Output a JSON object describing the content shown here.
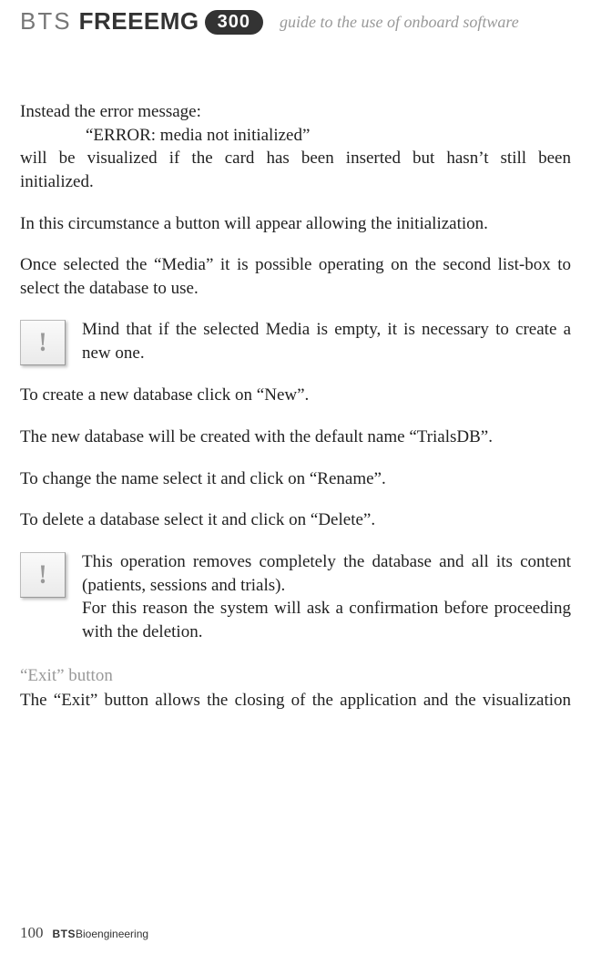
{
  "header": {
    "logo_bts": "BTS",
    "logo_freeemg": "FREEEMG",
    "logo_300": "300",
    "guide": "guide to the use of onboard software"
  },
  "content": {
    "p1_line1": "Instead the error message:",
    "p1_error": "“ERROR: media not initialized”",
    "p1_line2a": "will be visualized if the card has been inserted but hasn’t still been",
    "p1_line2b": "initialized.",
    "p2": "In this circumstance a button will appear allowing the initialization.",
    "p3": "Once selected the “Media” it is possible operating on the second list-box to select the database to use.",
    "note1": "Mind that if the selected Media is empty, it is necessary to create a new one.",
    "p4": "To create a new database click on “New”.",
    "p5": "The new database will be created with the default name “TrialsDB”.",
    "p6": "To change the name select it and click on “Rename”.",
    "p7": "To delete a database select it and click on “Delete”.",
    "note2a": "This operation removes completely the database and all its content (patients, sessions and trials).",
    "note2b": "For this reason the system will ask a confirmation before proceeding with the deletion.",
    "section_title": "“Exit” button",
    "p8": "The “Exit” button allows the closing of the application and the visualization"
  },
  "footer": {
    "page_number": "100",
    "bts": "BTS",
    "bio": " Bioengineering"
  },
  "icon_glyph": "!"
}
